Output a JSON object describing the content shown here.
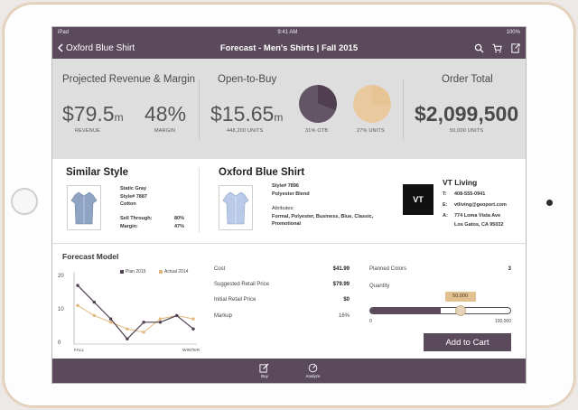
{
  "status": {
    "device": "iPad",
    "time": "9:41 AM",
    "battery": "100%"
  },
  "nav": {
    "back_label": "Oxford Blue Shirt",
    "title": "Forecast - Men's Shirts | Fall 2015",
    "icons": [
      "search-icon",
      "cart-icon",
      "export-icon"
    ]
  },
  "summary": {
    "revenue_title": "Projected Revenue & Margin",
    "revenue_value": "$79.5",
    "revenue_unit": "m",
    "revenue_caption": "REVENUE",
    "margin_value": "48%",
    "margin_caption": "MARGIN",
    "otb_title": "Open-to-Buy",
    "otb_value": "$15.65",
    "otb_unit": "m",
    "otb_caption": "448,200 UNITS",
    "pie1_caption": "31% OTB",
    "pie1_fraction": 0.31,
    "pie1_color": "#4f3f51",
    "pie2_caption": "27% UNITS",
    "pie2_fraction": 0.27,
    "pie2_color": "#e7c493",
    "order_title": "Order Total",
    "order_value": "$2,099,500",
    "order_caption": "50,000 UNITS"
  },
  "similar": {
    "title": "Similar Style",
    "color": "Static Gray",
    "style": "Style# 7887",
    "material": "Cotton",
    "sell_through_label": "Sell Through:",
    "sell_through_value": "80%",
    "margin_label": "Margin:",
    "margin_value": "47%"
  },
  "product": {
    "title": "Oxford Blue Shirt",
    "style": "Style# 7896",
    "material": "Polyester Blend",
    "attributes_label": "Attributes:",
    "attributes": "Formal, Polyester, Business, Blue, Classic, Promotional"
  },
  "vendor": {
    "logo": "VT",
    "name": "VT Living",
    "phone_label": "T:",
    "phone": "408-555-0941",
    "email_label": "E:",
    "email": "vtliving@geoport.com",
    "address_label": "A:",
    "address1": "774 Loma Vista Ave",
    "address2": "Los Gatos, CA 95032"
  },
  "forecast": {
    "title": "Forecast Model",
    "cost_label": "Cost",
    "cost_value": "$41.99",
    "srp_label": "Suggested Retail Price",
    "srp_value": "$79.99",
    "irp_label": "Initial Retail Price",
    "irp_value": "$0",
    "markup_label": "Markup",
    "markup_value": "16%",
    "planned_colors_label": "Planned Colors",
    "planned_colors_value": "3",
    "quantity_label": "Quantity",
    "quantity_value": "50,000",
    "quantity_fraction": 0.5,
    "slider_min": "0",
    "slider_max": "100,000",
    "add_to_cart": "Add to Cart"
  },
  "chart_data": {
    "type": "line",
    "x": [
      "FALL",
      "",
      "",
      "",
      "",
      "",
      "",
      "WINTER"
    ],
    "xtick_labels": [
      "FALL",
      "WINTER"
    ],
    "yticks": [
      "0",
      "10",
      "20"
    ],
    "ylim": [
      0,
      20
    ],
    "series": [
      {
        "name": "Plan 2015",
        "color": "#4f3f51",
        "values": [
          17,
          12,
          7,
          1,
          6,
          6,
          8,
          4
        ]
      },
      {
        "name": "Actual 2014",
        "color": "#e2b77d",
        "values": [
          11,
          8,
          6,
          4,
          3,
          7,
          8,
          7
        ]
      }
    ]
  },
  "tabs": [
    {
      "label": "Buy",
      "icon": "edit-icon"
    },
    {
      "label": "Analyze",
      "icon": "gauge-icon"
    }
  ]
}
